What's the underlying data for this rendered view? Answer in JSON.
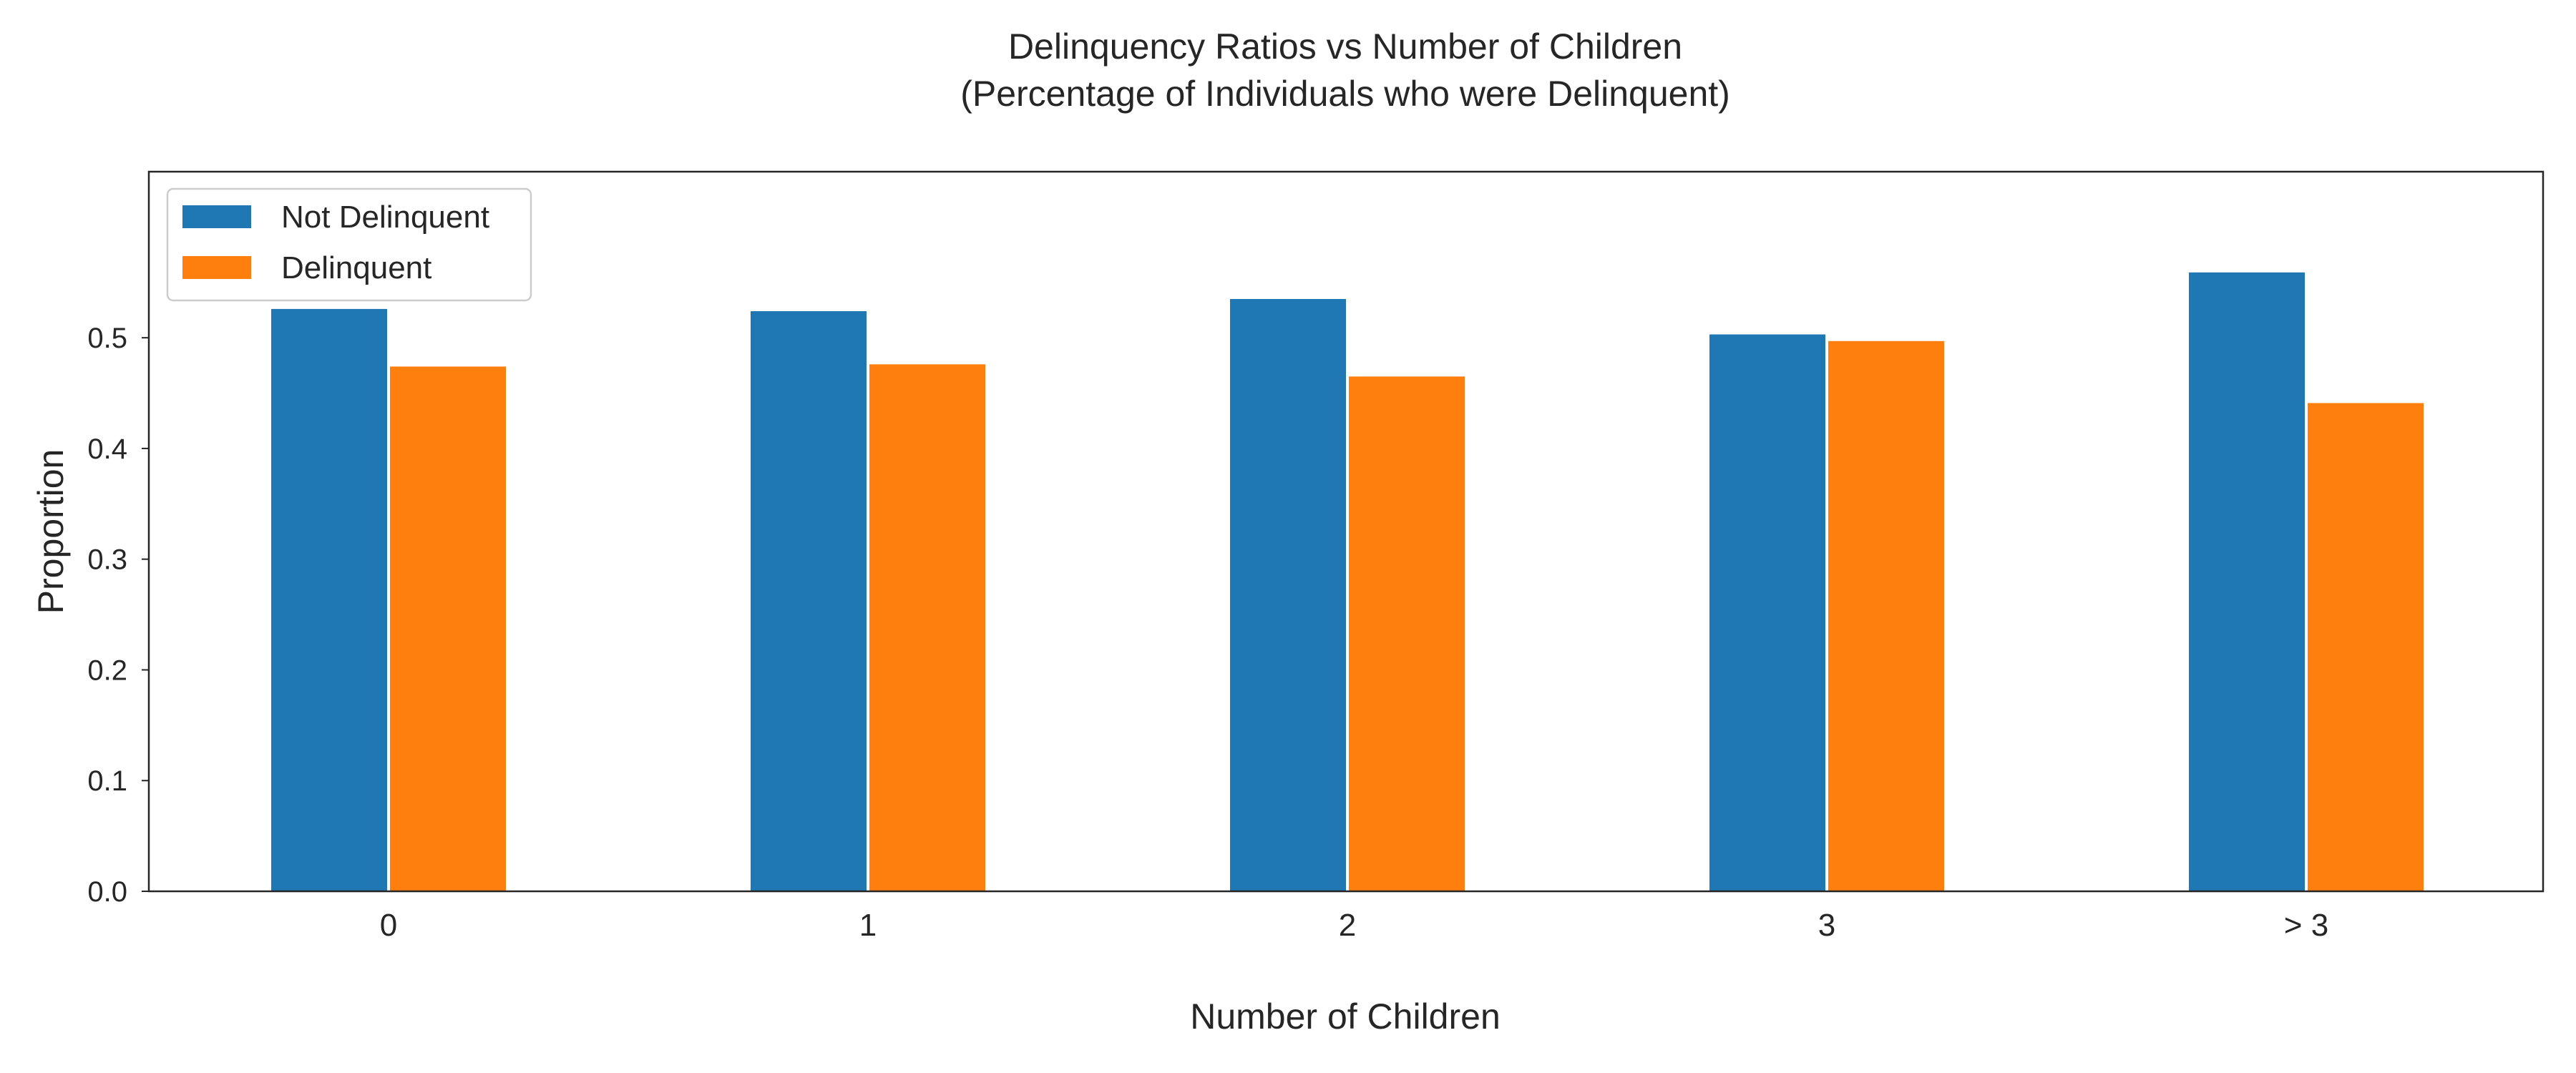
{
  "chart_data": {
    "type": "bar",
    "title": "Delinquency Ratios vs Number of Children",
    "subtitle": "(Percentage of Individuals who were Delinquent)",
    "xlabel": "Number of Children",
    "ylabel": "Proportion",
    "categories": [
      "0",
      "1",
      "2",
      "3",
      "> 3"
    ],
    "series": [
      {
        "name": "Not Delinquent",
        "color": "#1f77b4",
        "values": [
          0.526,
          0.524,
          0.535,
          0.503,
          0.559
        ]
      },
      {
        "name": "Delinquent",
        "color": "#ff7f0e",
        "values": [
          0.474,
          0.476,
          0.465,
          0.497,
          0.441
        ]
      }
    ],
    "yticks": [
      0.0,
      0.1,
      0.2,
      0.3,
      0.4,
      0.5
    ],
    "ytick_labels": [
      "0.0",
      "0.1",
      "0.2",
      "0.3",
      "0.4",
      "0.5"
    ],
    "ylim": [
      0,
      0.65
    ],
    "grid": false,
    "legend_position": "top-left"
  }
}
